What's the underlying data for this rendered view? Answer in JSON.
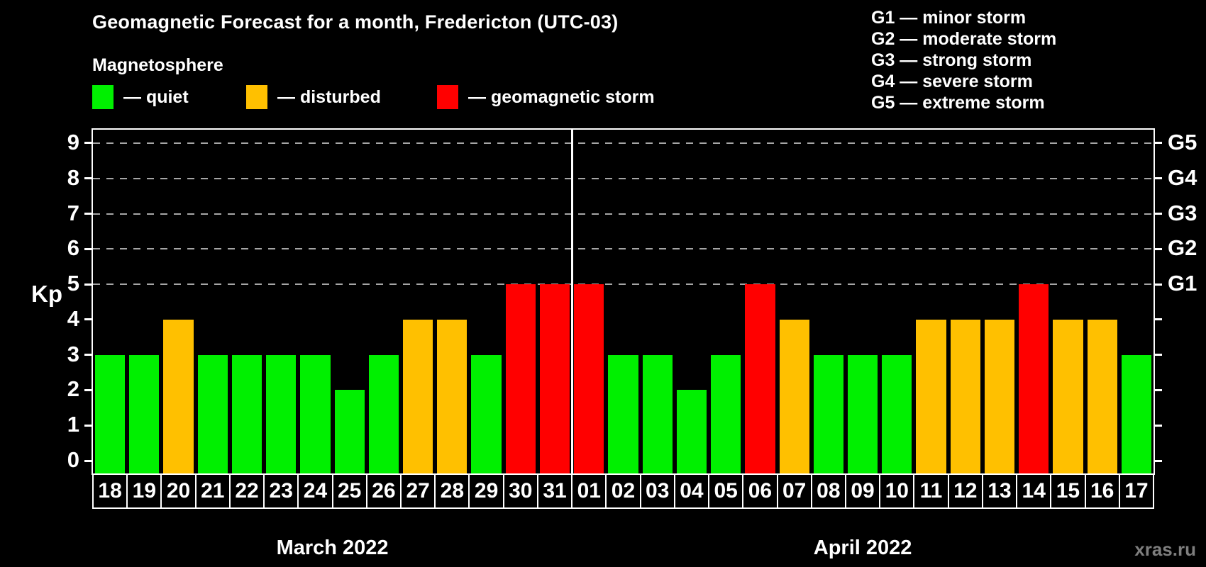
{
  "header": {
    "title": "Geomagnetic Forecast for a month, Fredericton (UTC-03)",
    "subtitle": "Magnetosphere"
  },
  "legend": {
    "items": [
      {
        "key": "quiet",
        "label": "— quiet",
        "color": "#00f000"
      },
      {
        "key": "disturbed",
        "label": "— disturbed",
        "color": "#ffc000"
      },
      {
        "key": "storm",
        "label": "— geomagnetic storm",
        "color": "#ff0000"
      }
    ]
  },
  "g_legend": [
    "G1 — minor storm",
    "G2 — moderate storm",
    "G3 — strong storm",
    "G4 — severe storm",
    "G5 — extreme storm"
  ],
  "watermark": "xras.ru",
  "chart_data": {
    "type": "bar",
    "title": "Geomagnetic Forecast for a month, Fredericton (UTC-03)",
    "xlabel": "",
    "ylabel": "Kp",
    "ylim": [
      0,
      9
    ],
    "y_ticks": [
      0,
      1,
      2,
      3,
      4,
      5,
      6,
      7,
      8,
      9
    ],
    "grid": "dashed horizontal lines at storm thresholds only",
    "gridlines_at_kp": [
      5,
      6,
      7,
      8,
      9
    ],
    "right_axis_labels": [
      {
        "kp": 5,
        "label": "G1"
      },
      {
        "kp": 6,
        "label": "G2"
      },
      {
        "kp": 7,
        "label": "G3"
      },
      {
        "kp": 8,
        "label": "G4"
      },
      {
        "kp": 9,
        "label": "G5"
      }
    ],
    "categories": [
      "18",
      "19",
      "20",
      "21",
      "22",
      "23",
      "24",
      "25",
      "26",
      "27",
      "28",
      "29",
      "30",
      "31",
      "01",
      "02",
      "03",
      "04",
      "05",
      "06",
      "07",
      "08",
      "09",
      "10",
      "11",
      "12",
      "13",
      "14",
      "15",
      "16",
      "17"
    ],
    "values": [
      3,
      3,
      4,
      3,
      3,
      3,
      3,
      2,
      3,
      4,
      4,
      3,
      5,
      5,
      5,
      3,
      3,
      2,
      3,
      5,
      4,
      3,
      3,
      3,
      4,
      4,
      4,
      5,
      4,
      4,
      3
    ],
    "statuses": [
      "quiet",
      "quiet",
      "disturbed",
      "quiet",
      "quiet",
      "quiet",
      "quiet",
      "quiet",
      "quiet",
      "disturbed",
      "disturbed",
      "quiet",
      "storm",
      "storm",
      "storm",
      "quiet",
      "quiet",
      "quiet",
      "quiet",
      "storm",
      "disturbed",
      "quiet",
      "quiet",
      "quiet",
      "disturbed",
      "disturbed",
      "disturbed",
      "storm",
      "disturbed",
      "disturbed",
      "quiet"
    ],
    "months": [
      {
        "label": "March 2022",
        "days": 14
      },
      {
        "label": "April 2022",
        "days": 17
      }
    ],
    "legend_position": "top-left and top-right"
  }
}
